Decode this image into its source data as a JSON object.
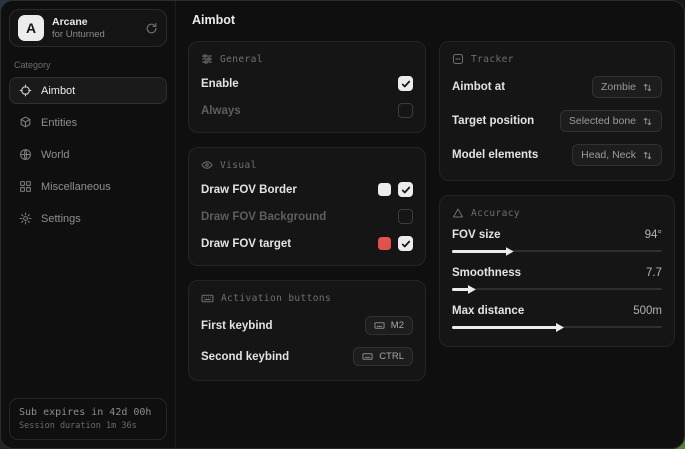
{
  "app": {
    "logo_letter": "A",
    "name": "Arcane",
    "subtitle": "for Unturned"
  },
  "sidebar": {
    "category_label": "Category",
    "items": [
      {
        "label": "Aimbot",
        "selected": true
      },
      {
        "label": "Entities",
        "selected": false
      },
      {
        "label": "World",
        "selected": false
      },
      {
        "label": "Miscellaneous",
        "selected": false
      },
      {
        "label": "Settings",
        "selected": false
      }
    ],
    "footer": {
      "line1": "Sub expires in 42d 00h",
      "line2": "Session duration 1m 36s"
    }
  },
  "main": {
    "title": "Aimbot"
  },
  "general": {
    "title": "General",
    "rows": [
      {
        "label": "Enable",
        "checked": true
      },
      {
        "label": "Always",
        "checked": false
      }
    ]
  },
  "visual": {
    "title": "Visual",
    "rows": [
      {
        "label": "Draw FOV Border",
        "checked": true,
        "swatch": "#ececec"
      },
      {
        "label": "Draw FOV Background",
        "checked": false,
        "swatch": ""
      },
      {
        "label": "Draw FOV target",
        "checked": true,
        "swatch": "#e0534d"
      }
    ]
  },
  "activation": {
    "title": "Activation buttons",
    "rows": [
      {
        "label": "First keybind",
        "key": "M2"
      },
      {
        "label": "Second keybind",
        "key": "CTRL"
      }
    ]
  },
  "tracker": {
    "title": "Tracker",
    "rows": [
      {
        "label": "Aimbot at",
        "value": "Zombie"
      },
      {
        "label": "Target position",
        "value": "Selected bone"
      },
      {
        "label": "Model elements",
        "value": "Head, Neck"
      }
    ]
  },
  "accuracy": {
    "title": "Accuracy",
    "rows": [
      {
        "label": "FOV size",
        "value": "94°",
        "percent": 26
      },
      {
        "label": "Smoothness",
        "value": "7.7",
        "percent": 8
      },
      {
        "label": "Max distance",
        "value": "500m",
        "percent": 50
      }
    ]
  },
  "colors": {
    "check_bg": "#ececec",
    "accent_red": "#e0534d",
    "card_bg": "#151515"
  }
}
